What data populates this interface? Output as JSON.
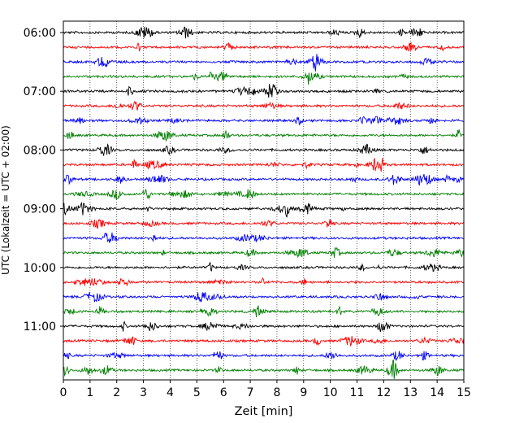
{
  "chart_data": {
    "type": "line",
    "subtype": "helicorder-seismogram",
    "xlabel": "Zeit  [min]",
    "ylabel": "UTC (Lokalzeit = UTC + 02:00)",
    "xlim": [
      0,
      15
    ],
    "x_ticks": [
      0,
      1,
      2,
      3,
      4,
      5,
      6,
      7,
      8,
      9,
      10,
      11,
      12,
      13,
      14,
      15
    ],
    "y_tick_labels": [
      "06:00",
      "07:00",
      "08:00",
      "09:00",
      "10:00",
      "11:00"
    ],
    "grid": "vertical-dotted",
    "trace_start": "06:00",
    "trace_interval_minutes": 15,
    "trace_count": 24,
    "trace_colors": [
      "#000000",
      "#ff0000",
      "#0000ff",
      "#008000"
    ]
  }
}
